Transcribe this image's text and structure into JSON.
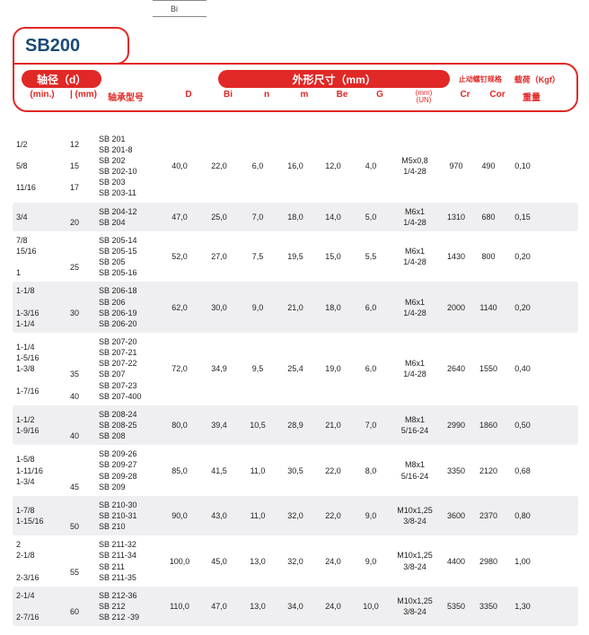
{
  "colors": {
    "accent": "#e02826",
    "title_text": "#1a4a7a",
    "alt_row_bg": "#efeff1"
  },
  "product_code": "SB200",
  "diagram_label": "Bi",
  "header": {
    "d_pill": "轴径（d）",
    "ext_pill": "外形尺寸（mm）",
    "model_label": "轴承型号",
    "min_label": "(min.)",
    "mm_label": "| (mm)",
    "cols": [
      "D",
      "Bi",
      "n",
      "m",
      "Be",
      "G"
    ],
    "un_top": "止动螺钉规格",
    "un_sub1": "(mm)",
    "un_sub2": "(UN)",
    "load_label": "载荷（Kgf）",
    "cr": "Cr",
    "cor": "Cor",
    "weight": "重量"
  },
  "rows": [
    {
      "alt": false,
      "min": [
        "1/2",
        "",
        "5/8",
        "",
        "11/16"
      ],
      "mm": [
        "12",
        "",
        "15",
        "",
        "17"
      ],
      "model": [
        "SB 201",
        "SB 201-8",
        "SB 202",
        "SB 202-10",
        "SB 203",
        "SB 203-11"
      ],
      "D": "40,0",
      "Bi": "22,0",
      "n": "6,0",
      "m": "16,0",
      "Be": "12,0",
      "G": "4,0",
      "un": [
        "M5x0,8",
        "1/4-28"
      ],
      "cr": "970",
      "cor": "490",
      "w": "0,10"
    },
    {
      "alt": true,
      "min": [
        "3/4"
      ],
      "mm": [
        "",
        "20"
      ],
      "model": [
        "SB 204-12",
        "SB 204"
      ],
      "D": "47,0",
      "Bi": "25,0",
      "n": "7,0",
      "m": "18,0",
      "Be": "14,0",
      "G": "5,0",
      "un": [
        "M6x1",
        "1/4-28"
      ],
      "cr": "1310",
      "cor": "680",
      "w": "0,15"
    },
    {
      "alt": false,
      "min": [
        "7/8",
        "15/16",
        "",
        "1"
      ],
      "mm": [
        "",
        "",
        "25"
      ],
      "model": [
        "SB 205-14",
        "SB 205-15",
        "SB 205",
        "SB 205-16"
      ],
      "D": "52,0",
      "Bi": "27,0",
      "n": "7,5",
      "m": "19,5",
      "Be": "15,0",
      "G": "5,5",
      "un": [
        "M6x1",
        "1/4-28"
      ],
      "cr": "1430",
      "cor": "800",
      "w": "0,20"
    },
    {
      "alt": true,
      "min": [
        "1-1/8",
        "",
        "1-3/16",
        "1-1/4"
      ],
      "mm": [
        "",
        "30"
      ],
      "model": [
        "SB 206-18",
        "SB 206",
        "SB 206-19",
        "SB 206-20"
      ],
      "D": "62,0",
      "Bi": "30,0",
      "n": "9,0",
      "m": "21,0",
      "Be": "18,0",
      "G": "6,0",
      "un": [
        "M6x1",
        "1/4-28"
      ],
      "cr": "2000",
      "cor": "1140",
      "w": "0,20"
    },
    {
      "alt": false,
      "min": [
        "1-1/4",
        "1-5/16",
        "1-3/8",
        "",
        "1-7/16"
      ],
      "mm": [
        "",
        "",
        "",
        "35",
        "",
        "40"
      ],
      "model": [
        "SB 207-20",
        "SB 207-21",
        "SB 207-22",
        "SB 207",
        "SB 207-23",
        "SB 207-400"
      ],
      "D": "72,0",
      "Bi": "34,9",
      "n": "9,5",
      "m": "25,4",
      "Be": "19,0",
      "G": "6,0",
      "un": [
        "M6x1",
        "1/4-28"
      ],
      "cr": "2640",
      "cor": "1550",
      "w": "0,40"
    },
    {
      "alt": true,
      "min": [
        "1-1/2",
        "1-9/16"
      ],
      "mm": [
        "",
        "",
        "40"
      ],
      "model": [
        "SB 208-24",
        "SB 208-25",
        "SB 208"
      ],
      "D": "80,0",
      "Bi": "39,4",
      "n": "10,5",
      "m": "28,9",
      "Be": "21,0",
      "G": "7,0",
      "un": [
        "M8x1",
        "5/16-24"
      ],
      "cr": "2990",
      "cor": "1860",
      "w": "0,50"
    },
    {
      "alt": false,
      "min": [
        "1-5/8",
        "1-11/16",
        "1-3/4"
      ],
      "mm": [
        "",
        "",
        "",
        "45"
      ],
      "model": [
        "SB 209-26",
        "SB 209-27",
        "SB 209-28",
        "SB 209"
      ],
      "D": "85,0",
      "Bi": "41,5",
      "n": "11,0",
      "m": "30,5",
      "Be": "22,0",
      "G": "8,0",
      "un": [
        "M8x1",
        "5/16-24"
      ],
      "cr": "3350",
      "cor": "2120",
      "w": "0,68"
    },
    {
      "alt": true,
      "min": [
        "1-7/8",
        "1-15/16"
      ],
      "mm": [
        "",
        "",
        "50"
      ],
      "model": [
        "SB 210-30",
        "SB 210-31",
        "SB 210"
      ],
      "D": "90,0",
      "Bi": "43,0",
      "n": "11,0",
      "m": "32,0",
      "Be": "22,0",
      "G": "9,0",
      "un": [
        "M10x1,25",
        "3/8-24"
      ],
      "cr": "3600",
      "cor": "2370",
      "w": "0,80"
    },
    {
      "alt": false,
      "min": [
        "2",
        "2-1/8",
        "",
        "2-3/16"
      ],
      "mm": [
        "",
        "",
        "55"
      ],
      "model": [
        "SB 211-32",
        "SB 211-34",
        "SB 211",
        "SB 211-35"
      ],
      "D": "100,0",
      "Bi": "45,0",
      "n": "13,0",
      "m": "32,0",
      "Be": "24,0",
      "G": "9,0",
      "un": [
        "M10x1,25",
        "3/8-24"
      ],
      "cr": "4400",
      "cor": "2980",
      "w": "1,00"
    },
    {
      "alt": true,
      "min": [
        "2-1/4",
        "",
        "2-7/16"
      ],
      "mm": [
        "",
        "60"
      ],
      "model": [
        "SB 212-36",
        "SB 212",
        "SB 212  -39"
      ],
      "D": "110,0",
      "Bi": "47,0",
      "n": "13,0",
      "m": "34,0",
      "Be": "24,0",
      "G": "10,0",
      "un": [
        "M10x1,25",
        "3/8-24"
      ],
      "cr": "5350",
      "cor": "3350",
      "w": "1,30"
    }
  ]
}
